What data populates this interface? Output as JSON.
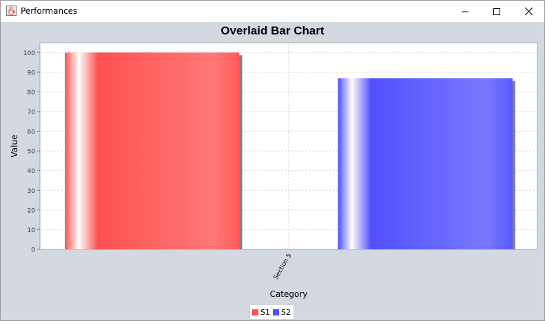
{
  "window": {
    "title": "Performances",
    "icon": "java-cup-icon"
  },
  "chart_data": {
    "type": "bar",
    "title": "Overlaid Bar Chart",
    "xlabel": "Category",
    "ylabel": "Value",
    "categories": [
      "Section 5"
    ],
    "series": [
      {
        "name": "S1",
        "values": [
          100
        ],
        "color": "#ff5050"
      },
      {
        "name": "S2",
        "values": [
          87
        ],
        "color": "#5050ff"
      }
    ],
    "ylim": [
      0,
      105
    ],
    "yticks": [
      "0",
      "10",
      "20",
      "30",
      "40",
      "50",
      "60",
      "70",
      "80",
      "90",
      "100"
    ],
    "grid": true,
    "legend_position": "bottom"
  }
}
